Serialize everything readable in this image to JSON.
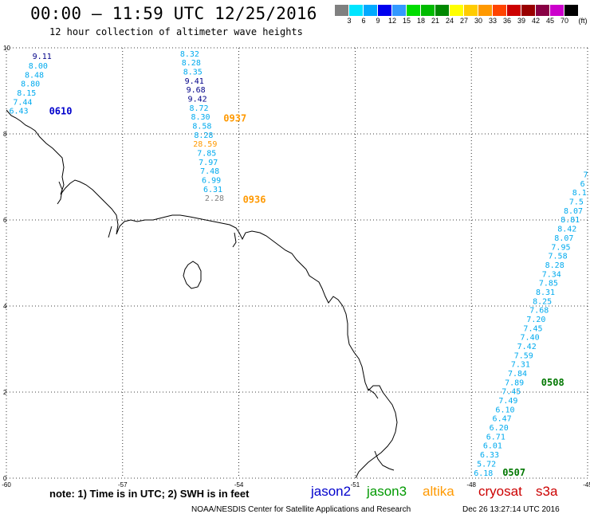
{
  "title": "00:00 – 11:59 UTC 12/25/2016",
  "subtitle": "12 hour collection of altimeter wave heights",
  "legend": {
    "units": "(ft)",
    "colors": [
      "#808080",
      "#00e5ff",
      "#00aaff",
      "#0000ee",
      "#3399ff",
      "#00dd00",
      "#00bb00",
      "#008800",
      "#ffff00",
      "#ffcc00",
      "#ff9900",
      "#ff4400",
      "#cc0000",
      "#990000",
      "#880044",
      "#cc00cc",
      "#000000"
    ],
    "labels": [
      "3",
      "6",
      "9",
      "12",
      "15",
      "18",
      "21",
      "24",
      "27",
      "30",
      "33",
      "36",
      "39",
      "42",
      "45",
      "70"
    ]
  },
  "axes": {
    "x_ticks": [
      "-60",
      "-57",
      "-54",
      "-51",
      "-48",
      "-45"
    ],
    "y_ticks": [
      "10",
      "8",
      "6",
      "4",
      "2",
      "0"
    ]
  },
  "colors": {
    "jason2": "#0000cc",
    "jason3": "#009900",
    "altika": "#ff9900",
    "cryosat": "#cc0000",
    "s3a": "#cc0000",
    "cyan": "#00aaee",
    "gray": "#808080",
    "navy": "#000088",
    "dkgreen": "#007700"
  },
  "tracks": [
    {
      "label": "0610",
      "label_color": "jason2",
      "points": [
        {
          "lon": -59.08,
          "lat": 9.74,
          "v": "9.11",
          "c": "navy"
        },
        {
          "lon": -59.18,
          "lat": 9.52,
          "v": "8.00",
          "c": "cyan"
        },
        {
          "lon": -59.28,
          "lat": 9.31,
          "v": "8.48",
          "c": "cyan"
        },
        {
          "lon": -59.38,
          "lat": 9.1,
          "v": "8.80",
          "c": "cyan"
        },
        {
          "lon": -59.48,
          "lat": 8.89,
          "v": "8.15",
          "c": "cyan"
        },
        {
          "lon": -59.58,
          "lat": 8.68,
          "v": "7.44",
          "c": "cyan"
        },
        {
          "lon": -59.68,
          "lat": 8.47,
          "v": "6.43",
          "c": "cyan"
        }
      ]
    },
    {
      "label": "0937",
      "label_color": "altika",
      "points": [
        {
          "lon": -55.27,
          "lat": 9.8,
          "v": "8.32",
          "c": "cyan"
        },
        {
          "lon": -55.23,
          "lat": 9.59,
          "v": "8.28",
          "c": "cyan"
        },
        {
          "lon": -55.19,
          "lat": 9.38,
          "v": "8.35",
          "c": "cyan"
        },
        {
          "lon": -55.15,
          "lat": 9.17,
          "v": "9.41",
          "c": "navy"
        },
        {
          "lon": -55.11,
          "lat": 8.96,
          "v": "9.68",
          "c": "navy"
        },
        {
          "lon": -55.07,
          "lat": 8.75,
          "v": "9.42",
          "c": "navy"
        },
        {
          "lon": -55.03,
          "lat": 8.54,
          "v": "8.72",
          "c": "cyan"
        },
        {
          "lon": -54.99,
          "lat": 8.33,
          "v": "8.30",
          "c": "cyan"
        },
        {
          "lon": -54.95,
          "lat": 8.12,
          "v": "8.58",
          "c": "cyan"
        }
      ]
    },
    {
      "label": "0936",
      "label_color": "altika",
      "points": [
        {
          "lon": -54.91,
          "lat": 7.91,
          "v": "8.28",
          "c": "cyan"
        },
        {
          "lon": -54.87,
          "lat": 7.7,
          "v": "28.59",
          "c": "altika"
        },
        {
          "lon": -54.83,
          "lat": 7.49,
          "v": "7.85",
          "c": "cyan"
        },
        {
          "lon": -54.79,
          "lat": 7.28,
          "v": "7.97",
          "c": "cyan"
        },
        {
          "lon": -54.75,
          "lat": 7.07,
          "v": "7.48",
          "c": "cyan"
        },
        {
          "lon": -54.71,
          "lat": 6.86,
          "v": "6.99",
          "c": "cyan"
        },
        {
          "lon": -54.67,
          "lat": 6.65,
          "v": "6.31",
          "c": "cyan"
        },
        {
          "lon": -54.63,
          "lat": 6.44,
          "v": "2.28",
          "c": "gray"
        }
      ]
    },
    {
      "label": "0508",
      "label_color": "dkgreen",
      "points": [
        {
          "lon": -45.05,
          "lat": 6.99,
          "v": "7",
          "c": "cyan"
        },
        {
          "lon": -45.13,
          "lat": 6.78,
          "v": "6",
          "c": "cyan"
        },
        {
          "lon": -45.21,
          "lat": 6.57,
          "v": "8.1",
          "c": "cyan"
        },
        {
          "lon": -45.29,
          "lat": 6.36,
          "v": "7.5",
          "c": "cyan"
        },
        {
          "lon": -45.37,
          "lat": 6.15,
          "v": "8.07",
          "c": "cyan"
        },
        {
          "lon": -45.45,
          "lat": 5.94,
          "v": "8.81",
          "c": "cyan"
        },
        {
          "lon": -45.53,
          "lat": 5.73,
          "v": "8.42",
          "c": "cyan"
        },
        {
          "lon": -45.61,
          "lat": 5.52,
          "v": "8.07",
          "c": "cyan"
        },
        {
          "lon": -45.69,
          "lat": 5.31,
          "v": "7.95",
          "c": "cyan"
        },
        {
          "lon": -45.77,
          "lat": 5.1,
          "v": "7.58",
          "c": "cyan"
        },
        {
          "lon": -45.85,
          "lat": 4.89,
          "v": "8.28",
          "c": "cyan"
        },
        {
          "lon": -45.93,
          "lat": 4.68,
          "v": "7.34",
          "c": "cyan"
        },
        {
          "lon": -46.01,
          "lat": 4.47,
          "v": "7.85",
          "c": "cyan"
        },
        {
          "lon": -46.09,
          "lat": 4.26,
          "v": "8.31",
          "c": "cyan"
        },
        {
          "lon": -46.17,
          "lat": 4.05,
          "v": "8.25",
          "c": "cyan"
        },
        {
          "lon": -46.25,
          "lat": 3.84,
          "v": "7.68",
          "c": "cyan"
        },
        {
          "lon": -46.33,
          "lat": 3.63,
          "v": "7.20",
          "c": "cyan"
        },
        {
          "lon": -46.41,
          "lat": 3.42,
          "v": "7.45",
          "c": "cyan"
        },
        {
          "lon": -46.49,
          "lat": 3.21,
          "v": "7.40",
          "c": "cyan"
        },
        {
          "lon": -46.57,
          "lat": 3.0,
          "v": "7.42",
          "c": "cyan"
        },
        {
          "lon": -46.65,
          "lat": 2.79,
          "v": "7.59",
          "c": "cyan"
        },
        {
          "lon": -46.73,
          "lat": 2.58,
          "v": "7.31",
          "c": "cyan"
        },
        {
          "lon": -46.81,
          "lat": 2.37,
          "v": "7.84",
          "c": "cyan"
        }
      ]
    },
    {
      "label": "0507",
      "label_color": "dkgreen",
      "points": [
        {
          "lon": -46.89,
          "lat": 2.16,
          "v": "7.89",
          "c": "cyan"
        },
        {
          "lon": -46.97,
          "lat": 1.95,
          "v": "7.45",
          "c": "cyan"
        },
        {
          "lon": -47.05,
          "lat": 1.74,
          "v": "7.49",
          "c": "cyan"
        },
        {
          "lon": -47.13,
          "lat": 1.53,
          "v": "6.10",
          "c": "cyan"
        },
        {
          "lon": -47.21,
          "lat": 1.32,
          "v": "6.47",
          "c": "cyan"
        },
        {
          "lon": -47.29,
          "lat": 1.11,
          "v": "6.20",
          "c": "cyan"
        },
        {
          "lon": -47.37,
          "lat": 0.9,
          "v": "6.71",
          "c": "cyan"
        },
        {
          "lon": -47.45,
          "lat": 0.69,
          "v": "6.01",
          "c": "cyan"
        },
        {
          "lon": -47.53,
          "lat": 0.48,
          "v": "6.33",
          "c": "cyan"
        },
        {
          "lon": -47.61,
          "lat": 0.27,
          "v": "5.72",
          "c": "cyan"
        },
        {
          "lon": -47.69,
          "lat": 0.06,
          "v": "6.18",
          "c": "cyan"
        }
      ]
    }
  ],
  "note": "note:  1) Time is in UTC;  2) SWH is in feet",
  "satellites": [
    {
      "name": "jason2",
      "color": "#0000cc"
    },
    {
      "name": "jason3",
      "color": "#009900"
    },
    {
      "name": "altika",
      "color": "#ff9900"
    },
    {
      "name": "cryosat",
      "color": "#cc0000"
    },
    {
      "name": "s3a",
      "color": "#cc0000"
    }
  ],
  "credit": "NOAA/NESDIS Center for Satellite Applications and Research",
  "timestamp": "Dec 26 13:27:14 UTC 2016"
}
